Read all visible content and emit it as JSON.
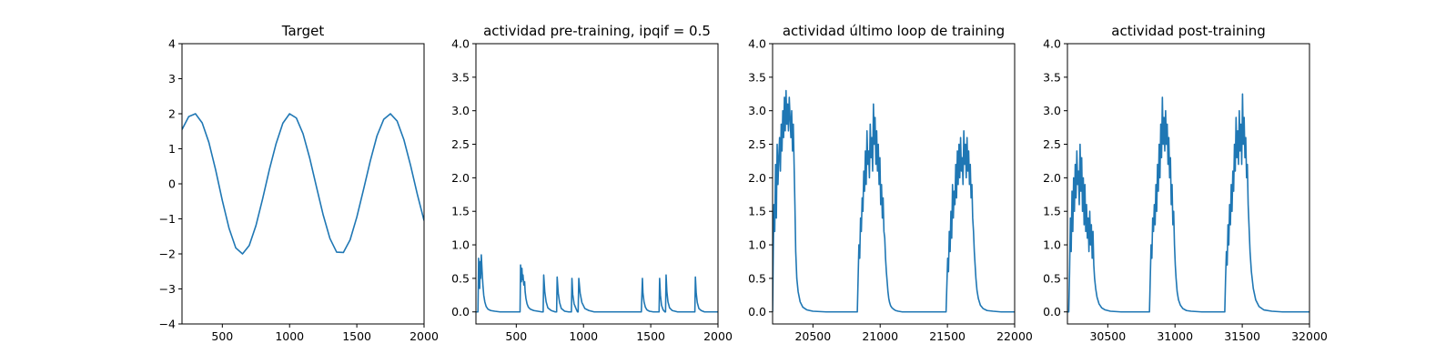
{
  "chart_data": [
    {
      "type": "line",
      "title": "Target",
      "xlim": [
        200,
        2000
      ],
      "ylim": [
        -4,
        4
      ],
      "xticks": [
        500,
        1000,
        1500,
        2000
      ],
      "xtick_labels": [
        "500",
        "1000",
        "1500",
        "2000"
      ],
      "yticks": [
        -4,
        -3,
        -2,
        -1,
        0,
        1,
        2,
        3,
        4
      ],
      "ytick_labels": [
        "−4",
        "−3",
        "−2",
        "−1",
        "0",
        "1",
        "2",
        "3",
        "4"
      ],
      "color": "#1f77b4",
      "series": [
        {
          "x": [
            200,
            250,
            300,
            350,
            400,
            450,
            500,
            550,
            600,
            650,
            700,
            750,
            800,
            850,
            900,
            950,
            1000,
            1050,
            1100,
            1150,
            1200,
            1250,
            1300,
            1350,
            1400,
            1450,
            1500,
            1550,
            1600,
            1650,
            1700,
            1750,
            1800,
            1850,
            1900,
            1950,
            2000
          ],
          "values": [
            1.55,
            1.92,
            2.0,
            1.74,
            1.18,
            0.4,
            -0.48,
            -1.27,
            -1.83,
            -2.0,
            -1.76,
            -1.19,
            -0.42,
            0.41,
            1.15,
            1.73,
            2.0,
            1.88,
            1.43,
            0.73,
            -0.09,
            -0.89,
            -1.56,
            -1.95,
            -1.96,
            -1.6,
            -0.95,
            -0.16,
            0.65,
            1.37,
            1.84,
            2.0,
            1.79,
            1.26,
            0.52,
            -0.3,
            -1.05
          ]
        }
      ]
    },
    {
      "type": "line",
      "title": "actividad pre-training, ipqif = 0.5",
      "xlim": [
        200,
        2000
      ],
      "ylim": [
        -0.18,
        4.0
      ],
      "xticks": [
        500,
        1000,
        1500,
        2000
      ],
      "xtick_labels": [
        "500",
        "1000",
        "1500",
        "2000"
      ],
      "yticks": [
        0.0,
        0.5,
        1.0,
        1.5,
        2.0,
        2.5,
        3.0,
        3.5,
        4.0
      ],
      "ytick_labels": [
        "0.0",
        "0.5",
        "1.0",
        "1.5",
        "2.0",
        "2.5",
        "3.0",
        "3.5",
        "4.0"
      ],
      "color": "#1f77b4",
      "series": [
        {
          "x": [
            200,
            208,
            215,
            220,
            225,
            228,
            232,
            235,
            240,
            246,
            252,
            258,
            266,
            276,
            290,
            310,
            340,
            380,
            420,
            470,
            520,
            528,
            532,
            538,
            542,
            546,
            550,
            556,
            562,
            566,
            572,
            580,
            590,
            605,
            630,
            660,
            690,
            700,
            704,
            712,
            722,
            735,
            760,
            790,
            800,
            804,
            812,
            822,
            835,
            860,
            890,
            905,
            910,
            914,
            920,
            930,
            944,
            955,
            960,
            965,
            975,
            988,
            1010,
            1040,
            1080,
            1150,
            1250,
            1350,
            1430,
            1438,
            1442,
            1450,
            1460,
            1472,
            1490,
            1520,
            1555,
            1562,
            1566,
            1572,
            1580,
            1592,
            1605,
            1610,
            1614,
            1620,
            1628,
            1640,
            1660,
            1700,
            1760,
            1820,
            1828,
            1832,
            1838,
            1846,
            1858,
            1875,
            1900,
            1950,
            2000
          ],
          "values": [
            0.0,
            0.0,
            0.0,
            0.8,
            0.55,
            0.35,
            0.75,
            0.5,
            0.85,
            0.6,
            0.4,
            0.25,
            0.15,
            0.08,
            0.04,
            0.02,
            0.01,
            0.0,
            0.0,
            0.0,
            0.0,
            0.0,
            0.7,
            0.45,
            0.65,
            0.48,
            0.55,
            0.4,
            0.45,
            0.3,
            0.2,
            0.12,
            0.07,
            0.04,
            0.02,
            0.01,
            0.0,
            0.0,
            0.55,
            0.3,
            0.15,
            0.06,
            0.02,
            0.0,
            0.0,
            0.52,
            0.28,
            0.14,
            0.05,
            0.01,
            0.0,
            0.0,
            0.0,
            0.5,
            0.26,
            0.12,
            0.05,
            0.0,
            0.0,
            0.5,
            0.28,
            0.14,
            0.05,
            0.02,
            0.0,
            0.0,
            0.0,
            0.0,
            0.0,
            0.5,
            0.28,
            0.15,
            0.07,
            0.03,
            0.01,
            0.0,
            0.0,
            0.0,
            0.5,
            0.25,
            0.1,
            0.03,
            0.0,
            0.0,
            0.55,
            0.3,
            0.15,
            0.06,
            0.02,
            0.0,
            0.0,
            0.0,
            0.0,
            0.52,
            0.28,
            0.14,
            0.05,
            0.02,
            0.0,
            0.0,
            0.0
          ]
        }
      ]
    },
    {
      "type": "line",
      "title": "actividad último loop de training",
      "xlim": [
        20200,
        22000
      ],
      "ylim": [
        -0.18,
        4.0
      ],
      "xticks": [
        20500,
        21000,
        21500,
        22000
      ],
      "xtick_labels": [
        "20500",
        "21000",
        "21500",
        "22000"
      ],
      "yticks": [
        0.0,
        0.5,
        1.0,
        1.5,
        2.0,
        2.5,
        3.0,
        3.5,
        4.0
      ],
      "ytick_labels": [
        "0.0",
        "0.5",
        "1.0",
        "1.5",
        "2.0",
        "2.5",
        "3.0",
        "3.5",
        "4.0"
      ],
      "color": "#1f77b4",
      "series": [
        {
          "x": [
            20200,
            20205,
            20210,
            20216,
            20222,
            20228,
            20234,
            20240,
            20246,
            20252,
            20258,
            20264,
            20270,
            20276,
            20282,
            20288,
            20294,
            20300,
            20306,
            20312,
            20318,
            20324,
            20330,
            20336,
            20342,
            20348,
            20354,
            20360,
            20366,
            20372,
            20380,
            20390,
            20405,
            20425,
            20455,
            20500,
            20600,
            20700,
            20800,
            20830,
            20836,
            20842,
            20848,
            20854,
            20860,
            20866,
            20872,
            20878,
            20884,
            20890,
            20896,
            20902,
            20908,
            20914,
            20920,
            20926,
            20932,
            20938,
            20944,
            20950,
            20956,
            20962,
            20968,
            20974,
            20980,
            20986,
            20992,
            20998,
            21004,
            21010,
            21016,
            21022,
            21028,
            21034,
            21040,
            21046,
            21052,
            21058,
            21064,
            21070,
            21078,
            21088,
            21100,
            21115,
            21135,
            21165,
            21200,
            21300,
            21400,
            21490,
            21496,
            21502,
            21508,
            21514,
            21520,
            21526,
            21532,
            21538,
            21544,
            21550,
            21556,
            21562,
            21568,
            21574,
            21580,
            21586,
            21592,
            21598,
            21604,
            21610,
            21616,
            21622,
            21628,
            21634,
            21640,
            21646,
            21652,
            21658,
            21664,
            21670,
            21676,
            21682,
            21688,
            21694,
            21700,
            21706,
            21712,
            21720,
            21730,
            21745,
            21765,
            21795,
            21840,
            21900,
            22000
          ],
          "values": [
            0.0,
            0.9,
            1.6,
            1.2,
            2.2,
            1.4,
            2.5,
            1.9,
            2.3,
            2.6,
            2.1,
            2.8,
            2.4,
            3.0,
            2.6,
            3.2,
            2.7,
            3.3,
            2.8,
            3.1,
            2.7,
            3.2,
            2.9,
            2.6,
            3.0,
            2.4,
            2.8,
            2.2,
            1.6,
            0.9,
            0.5,
            0.3,
            0.15,
            0.07,
            0.03,
            0.01,
            0.0,
            0.0,
            0.0,
            0.0,
            0.5,
            1.0,
            0.8,
            1.4,
            1.2,
            1.7,
            1.5,
            2.1,
            1.8,
            2.4,
            1.9,
            2.7,
            2.2,
            2.4,
            2.0,
            2.8,
            2.3,
            2.6,
            2.1,
            3.1,
            2.5,
            2.9,
            2.2,
            2.7,
            2.1,
            2.5,
            1.9,
            2.3,
            1.6,
            1.9,
            1.4,
            1.7,
            1.2,
            1.1,
            0.8,
            0.6,
            0.45,
            0.3,
            0.2,
            0.14,
            0.09,
            0.06,
            0.04,
            0.02,
            0.01,
            0.0,
            0.0,
            0.0,
            0.0,
            0.0,
            0.4,
            0.8,
            0.6,
            1.2,
            0.9,
            1.5,
            1.1,
            1.9,
            1.4,
            1.8,
            1.6,
            2.2,
            1.7,
            2.4,
            1.9,
            2.5,
            2.0,
            2.6,
            2.1,
            2.3,
            1.9,
            2.7,
            2.2,
            2.5,
            2.0,
            2.6,
            2.1,
            2.4,
            1.9,
            2.2,
            1.7,
            1.9,
            1.4,
            1.2,
            0.9,
            0.7,
            0.5,
            0.32,
            0.2,
            0.1,
            0.05,
            0.02,
            0.01,
            0.0,
            0.0
          ]
        }
      ]
    },
    {
      "type": "line",
      "title": "actividad post-training",
      "xlim": [
        30200,
        32000
      ],
      "ylim": [
        -0.18,
        4.0
      ],
      "xticks": [
        30500,
        31000,
        31500,
        32000
      ],
      "xtick_labels": [
        "30500",
        "31000",
        "31500",
        "32000"
      ],
      "yticks": [
        0.0,
        0.5,
        1.0,
        1.5,
        2.0,
        2.5,
        3.0,
        3.5,
        4.0
      ],
      "ytick_labels": [
        "0.0",
        "0.5",
        "1.0",
        "1.5",
        "2.0",
        "2.5",
        "3.0",
        "3.5",
        "4.0"
      ],
      "color": "#1f77b4",
      "series": [
        {
          "x": [
            30200,
            30210,
            30216,
            30222,
            30228,
            30234,
            30240,
            30246,
            30252,
            30258,
            30264,
            30270,
            30276,
            30282,
            30288,
            30294,
            30300,
            30306,
            30312,
            30318,
            30324,
            30330,
            30336,
            30342,
            30348,
            30354,
            30360,
            30366,
            30372,
            30378,
            30384,
            30390,
            30396,
            30402,
            30410,
            30420,
            30435,
            30455,
            30480,
            30520,
            30600,
            30700,
            30800,
            30810,
            30816,
            30822,
            30828,
            30834,
            30840,
            30846,
            30852,
            30858,
            30864,
            30870,
            30876,
            30882,
            30888,
            30894,
            30900,
            30906,
            30912,
            30918,
            30924,
            30930,
            30936,
            30942,
            30948,
            30954,
            30960,
            30966,
            30972,
            30978,
            30984,
            30990,
            30996,
            31002,
            31008,
            31016,
            31026,
            31040,
            31058,
            31085,
            31120,
            31200,
            31300,
            31370,
            31376,
            31382,
            31388,
            31394,
            31400,
            31406,
            31412,
            31418,
            31424,
            31430,
            31436,
            31442,
            31448,
            31454,
            31460,
            31466,
            31472,
            31478,
            31484,
            31490,
            31496,
            31502,
            31508,
            31514,
            31520,
            31526,
            31532,
            31538,
            31544,
            31550,
            31558,
            31568,
            31582,
            31600,
            31625,
            31660,
            31720,
            31800,
            32000
          ],
          "values": [
            0.0,
            0.0,
            0.6,
            1.4,
            0.9,
            1.8,
            1.2,
            2.0,
            1.5,
            2.2,
            1.7,
            2.4,
            1.9,
            2.1,
            1.6,
            2.5,
            1.8,
            2.3,
            1.5,
            2.0,
            1.3,
            1.9,
            1.2,
            1.6,
            1.1,
            1.4,
            0.9,
            1.5,
            1.0,
            1.3,
            0.8,
            1.2,
            0.7,
            0.5,
            0.35,
            0.22,
            0.12,
            0.06,
            0.03,
            0.01,
            0.0,
            0.0,
            0.0,
            0.0,
            0.5,
            1.0,
            0.8,
            1.4,
            1.2,
            1.6,
            1.3,
            1.9,
            1.5,
            2.2,
            1.8,
            2.5,
            2.0,
            2.8,
            2.3,
            3.2,
            2.5,
            2.9,
            2.4,
            3.0,
            2.5,
            2.8,
            2.2,
            2.6,
            2.0,
            2.3,
            1.6,
            1.9,
            1.3,
            1.5,
            1.0,
            0.7,
            0.5,
            0.3,
            0.18,
            0.1,
            0.05,
            0.02,
            0.01,
            0.0,
            0.0,
            0.0,
            0.5,
            0.9,
            0.7,
            1.3,
            1.0,
            1.6,
            1.3,
            1.9,
            1.5,
            2.1,
            1.8,
            2.5,
            2.1,
            2.9,
            2.3,
            2.7,
            2.2,
            3.0,
            2.4,
            2.8,
            2.2,
            3.25,
            2.5,
            2.9,
            2.3,
            2.6,
            2.0,
            2.2,
            1.6,
            1.3,
            0.9,
            0.6,
            0.35,
            0.18,
            0.08,
            0.03,
            0.01,
            0.0,
            0.0
          ]
        }
      ]
    }
  ]
}
